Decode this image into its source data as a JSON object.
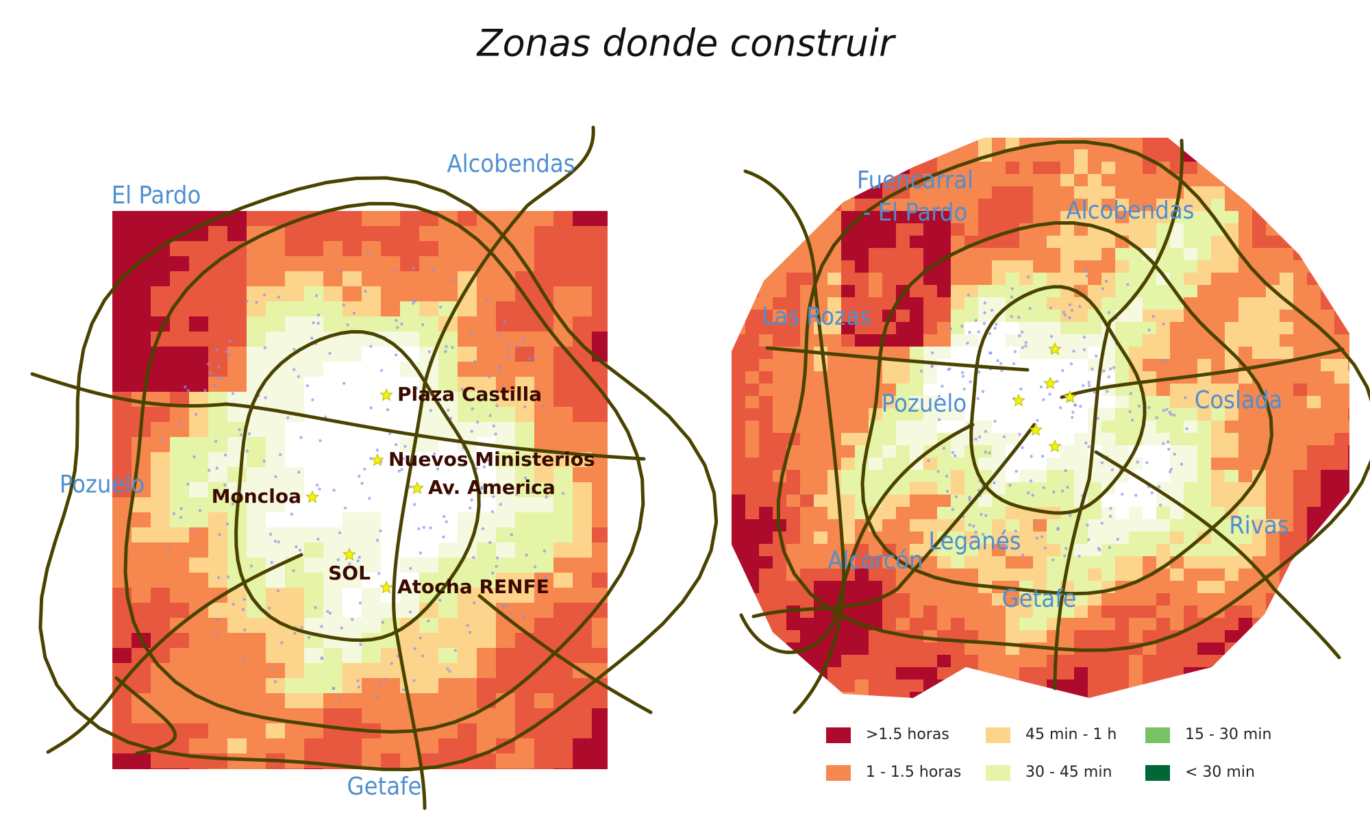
{
  "title": "Zonas donde construir",
  "left_map": {
    "places": [
      "El Pardo",
      "Alcobendas",
      "Pozuelo",
      "Getafe"
    ],
    "stations": [
      "Plaza Castilla",
      "Nuevos Ministerios",
      "Av. America",
      "Moncloa",
      "SOL",
      "Atocha RENFE"
    ]
  },
  "right_map": {
    "places": [
      [
        "Fuencarral",
        "- El Pardo"
      ],
      [
        "Alcobendas"
      ],
      [
        "Las Rozas"
      ],
      [
        "Pozuelo"
      ],
      [
        "Coslada"
      ],
      [
        "Rivas"
      ],
      [
        "Leganés"
      ],
      [
        "Alcorcón"
      ],
      [
        "Getafe"
      ]
    ]
  },
  "legend": [
    {
      "label": ">1.5 horas",
      "color": "#ad0a2c"
    },
    {
      "label": "1 - 1.5 horas",
      "color": "#f6874e"
    },
    {
      "label": "45 min - 1 h",
      "color": "#fdd48b"
    },
    {
      "label": "30 - 45 min",
      "color": "#e5f4a6"
    },
    {
      "label": "15 - 30 min",
      "color": "#79c263"
    },
    {
      "label": "< 30 min",
      "color": "#006837"
    }
  ]
}
